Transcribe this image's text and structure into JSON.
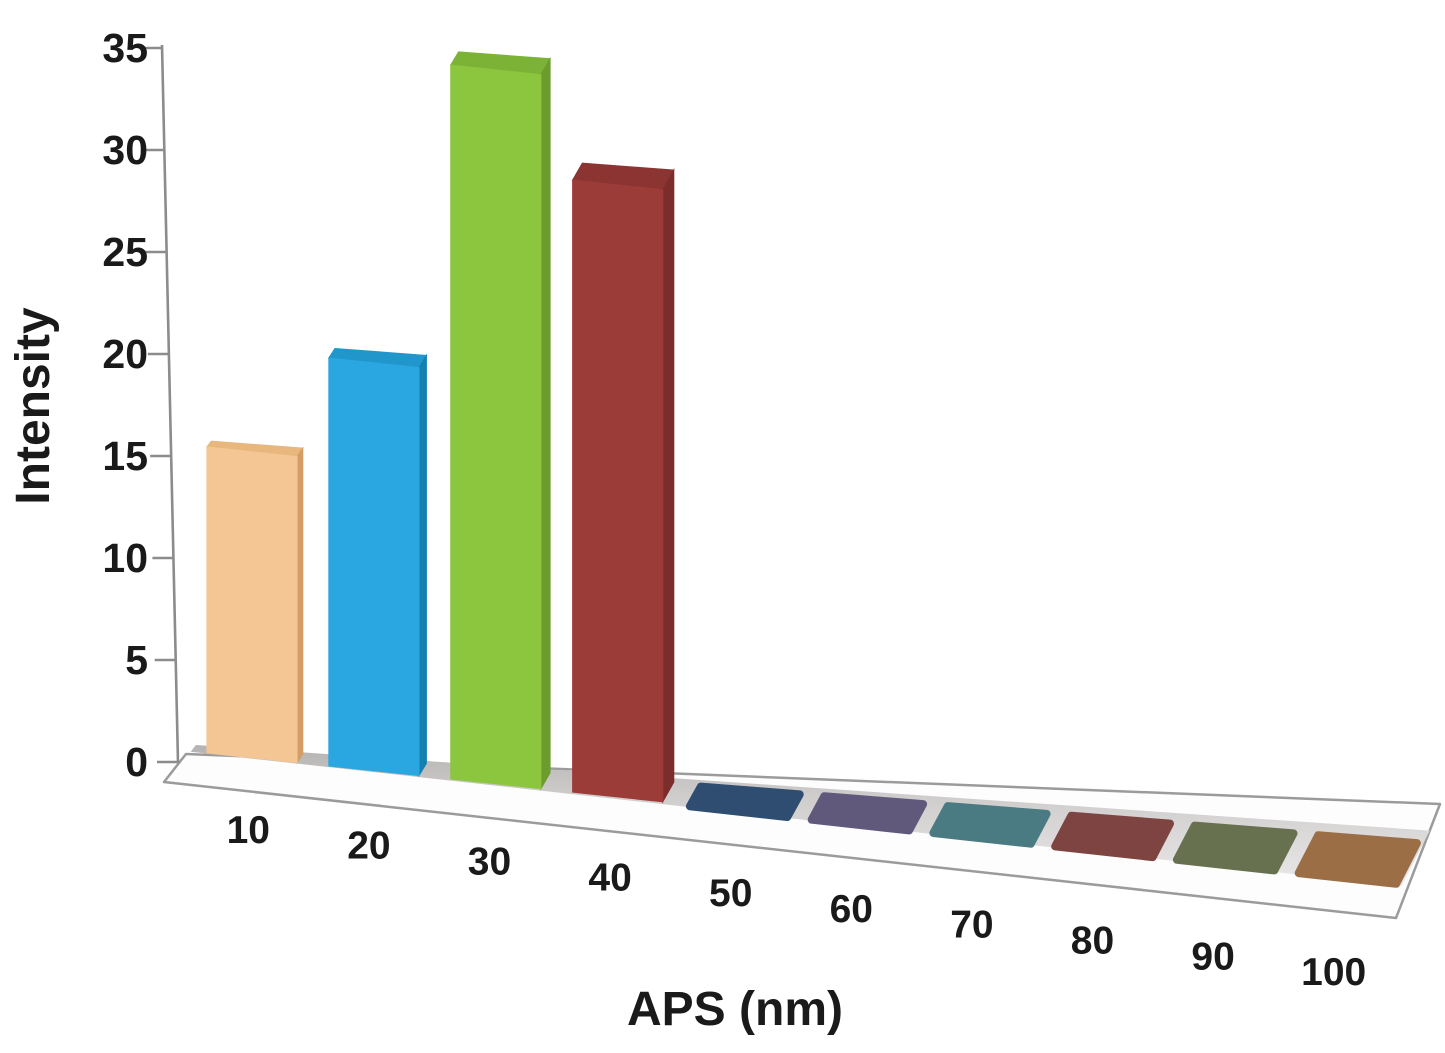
{
  "figure": {
    "background": "#ffffff",
    "text_color": "#1a1a1a"
  },
  "chart_data": {
    "type": "bar",
    "projection": "3d",
    "title": "",
    "xlabel": "APS (nm)",
    "ylabel": "Intensity",
    "categories": [
      "10",
      "20",
      "30",
      "40",
      "50",
      "60",
      "70",
      "80",
      "90",
      "100"
    ],
    "values": [
      15,
      20,
      35,
      30,
      0,
      0,
      0,
      0,
      0,
      0
    ],
    "ylim": [
      0,
      35
    ],
    "ytick_values": [
      0,
      5,
      10,
      15,
      20,
      25,
      30,
      35
    ],
    "ytick_labels": [
      "0",
      "5",
      "10",
      "15",
      "20",
      "25",
      "30",
      "35"
    ],
    "grid": false,
    "legend": "none",
    "series_colors": [
      {
        "front": "#F3C694",
        "side": "#D29E66",
        "top": "#E7B77E"
      },
      {
        "front": "#2AA7E0",
        "side": "#1480B2",
        "top": "#2196CB"
      },
      {
        "front": "#8CC63F",
        "side": "#6B9C2D",
        "top": "#7CB236"
      },
      {
        "front": "#9C3C39",
        "side": "#7C2D2B",
        "top": "#8B3432"
      },
      {
        "front": "#2E4D71",
        "side": "#2E4D71",
        "top": "#2E4D71"
      },
      {
        "front": "#60597B",
        "side": "#60597B",
        "top": "#60597B"
      },
      {
        "front": "#4A7B82",
        "side": "#4A7B82",
        "top": "#4A7B82"
      },
      {
        "front": "#7D4441",
        "side": "#7D4441",
        "top": "#7D4441"
      },
      {
        "front": "#67714F",
        "side": "#67714F",
        "top": "#67714F"
      },
      {
        "front": "#9C6E46",
        "side": "#9C6E46",
        "top": "#9C6E46"
      }
    ],
    "axis_color": "#8C8C8C",
    "floor_colors": {
      "slab_fill": "#FDFDFD",
      "slab_stroke": "#9B9B9B",
      "strip_back": "#B5B2B2",
      "strip_mid": "#CFCCCC",
      "strip_front": "#E8E6E6"
    }
  }
}
